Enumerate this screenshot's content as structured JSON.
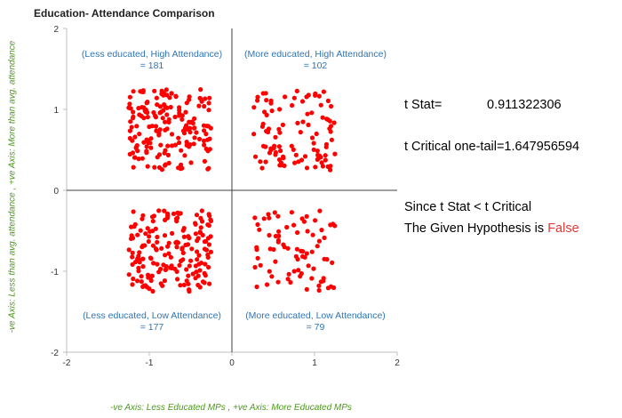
{
  "chart_data": {
    "type": "scatter",
    "title": "Education- Attendance Comparison",
    "xlabel": "-ve Axis: Less Educated MPs , +ve Axis: More Educated MPs",
    "ylabel": "-ve Axis: Less than avg. attendance , +ve Axis: More than avg. attendance",
    "xlim": [
      -2,
      2
    ],
    "ylim": [
      -2,
      2
    ],
    "xticks": [
      "-2",
      "-1",
      "0",
      "1",
      "2"
    ],
    "yticks": [
      "-2",
      "-1",
      "0",
      "1",
      "2"
    ],
    "point_color": "#ff0000",
    "quadrants": [
      {
        "label": "(Less educated, High Attendance)",
        "count_label": "= 181",
        "count": 181,
        "x_range": [
          -1.25,
          -0.25
        ],
        "y_range": [
          0.25,
          1.25
        ]
      },
      {
        "label": "(More educated, High Attendance)",
        "count_label": "= 102",
        "count": 102,
        "x_range": [
          0.25,
          1.25
        ],
        "y_range": [
          0.25,
          1.25
        ]
      },
      {
        "label": "(Less educated, Low Attendance)",
        "count_label": "= 177",
        "count": 177,
        "x_range": [
          -1.25,
          -0.25
        ],
        "y_range": [
          -1.25,
          -0.25
        ]
      },
      {
        "label": "(More educated, Low Attendance)",
        "count_label": "= 79",
        "count": 79,
        "x_range": [
          0.25,
          1.25
        ],
        "y_range": [
          -1.25,
          -0.25
        ]
      }
    ]
  },
  "stats": {
    "t_stat_label": "t Stat=",
    "t_stat_value": "0.911322306",
    "t_critical_label": "t Critical one-tail=",
    "t_critical_value": "1.647956594",
    "conclusion_line1": "Since t Stat < t Critical",
    "conclusion_line2_prefix": "The Given Hypothesis is ",
    "conclusion_line2_result": "False"
  }
}
